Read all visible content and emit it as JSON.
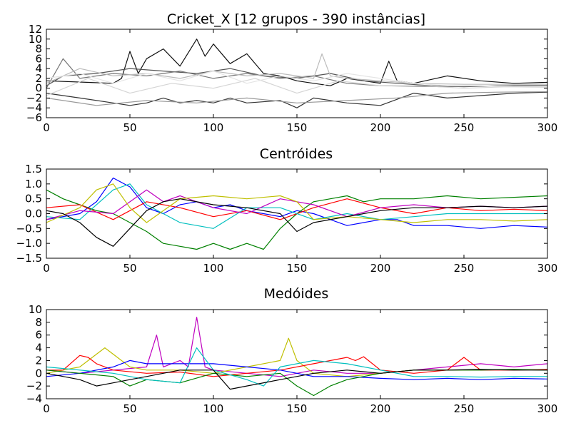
{
  "figure_title": "Cricket_X [12 grupos - 390 instâncias]",
  "chart_data": [
    {
      "type": "line",
      "title": "Cricket_X [12 grupos - 390 instâncias]",
      "xlabel": "",
      "ylabel": "",
      "xlim": [
        0,
        300
      ],
      "ylim": [
        -6,
        12
      ],
      "xticks": [
        "0",
        "50",
        "100",
        "150",
        "200",
        "250",
        "300"
      ],
      "yticks": [
        "−6",
        "−4",
        "−2",
        "0",
        "2",
        "4",
        "6",
        "8",
        "10",
        "12"
      ],
      "grid": false,
      "legend": "none",
      "description_series": "390 overlaid instances in grayscale (black to light gray)",
      "series": [
        {
          "color": "#111111",
          "x": [
            0,
            40,
            45,
            50,
            55,
            60,
            70,
            80,
            90,
            95,
            100,
            110,
            120,
            130,
            140,
            150,
            160,
            170,
            180,
            190,
            200,
            205,
            210,
            220,
            240,
            260,
            280,
            300
          ],
          "values": [
            1.5,
            1.0,
            2.0,
            7.5,
            3.0,
            6.0,
            8.0,
            4.5,
            10.0,
            6.5,
            9.0,
            5.0,
            7.0,
            3.0,
            2.5,
            1.5,
            1.0,
            0.5,
            2.0,
            1.5,
            1.0,
            5.5,
            1.5,
            1.0,
            2.5,
            1.5,
            1.0,
            1.2
          ]
        },
        {
          "color": "#333333",
          "x": [
            0,
            20,
            40,
            50,
            60,
            70,
            80,
            90,
            100,
            110,
            120,
            140,
            150,
            160,
            180,
            200,
            220,
            240,
            260,
            280,
            300
          ],
          "values": [
            -1.0,
            -2.0,
            -3.0,
            -3.5,
            -3.0,
            -2.0,
            -3.0,
            -2.5,
            -3.0,
            -2.0,
            -3.0,
            -2.5,
            -4.0,
            -2.0,
            -3.0,
            -3.5,
            -1.0,
            -2.0,
            -1.5,
            -1.0,
            -0.8
          ]
        },
        {
          "color": "#555555",
          "x": [
            0,
            10,
            30,
            50,
            70,
            90,
            110,
            130,
            150,
            170,
            190,
            210,
            230,
            250,
            270,
            300
          ],
          "values": [
            0.5,
            2.5,
            3.0,
            4.0,
            3.5,
            3.0,
            4.0,
            2.5,
            2.0,
            3.0,
            1.5,
            1.0,
            0.5,
            0.3,
            0.5,
            0.4
          ]
        },
        {
          "color": "#777777",
          "x": [
            0,
            10,
            20,
            40,
            60,
            80,
            100,
            120,
            140,
            160,
            180,
            200,
            240,
            270,
            300
          ],
          "values": [
            0.0,
            6.0,
            2.0,
            3.0,
            2.5,
            3.5,
            2.0,
            3.0,
            2.0,
            2.5,
            1.0,
            0.5,
            0.3,
            0.5,
            0.6
          ]
        },
        {
          "color": "#999999",
          "x": [
            0,
            30,
            60,
            90,
            120,
            150,
            180,
            210,
            240,
            270,
            300
          ],
          "values": [
            -2.0,
            -3.5,
            -2.5,
            -3.0,
            -2.0,
            -3.0,
            -2.5,
            -2.0,
            -1.0,
            -0.8,
            -0.7
          ]
        },
        {
          "color": "#bbbbbb",
          "x": [
            0,
            20,
            40,
            60,
            80,
            100,
            120,
            140,
            160,
            165,
            170,
            180,
            200,
            220,
            250,
            300
          ],
          "values": [
            1.0,
            4.0,
            2.5,
            3.0,
            2.0,
            3.5,
            2.5,
            3.0,
            2.0,
            7.0,
            2.5,
            2.0,
            1.5,
            1.0,
            0.8,
            0.8
          ]
        },
        {
          "color": "#d5d5d5",
          "x": [
            0,
            25,
            50,
            75,
            100,
            125,
            150,
            175,
            200,
            225,
            250,
            275,
            300
          ],
          "values": [
            -1.5,
            2.0,
            -1.0,
            1.0,
            0.0,
            2.0,
            -1.0,
            1.5,
            0.5,
            0.5,
            0.0,
            0.3,
            0.2
          ]
        },
        {
          "color": "#e5e5e5",
          "x": [
            0,
            20,
            40,
            60,
            80,
            100,
            120,
            140,
            160,
            180,
            200,
            220,
            240,
            260,
            280,
            300
          ],
          "values": [
            2.0,
            3.0,
            1.0,
            3.0,
            1.5,
            3.5,
            1.0,
            2.5,
            1.5,
            3.0,
            2.0,
            1.0,
            0.5,
            0.5,
            0.3,
            0.4
          ]
        }
      ]
    },
    {
      "type": "line",
      "title": "Centróides",
      "xlabel": "",
      "ylabel": "",
      "xlim": [
        0,
        300
      ],
      "ylim": [
        -1.5,
        1.5
      ],
      "xticks": [
        "0",
        "50",
        "100",
        "150",
        "200",
        "250",
        "300"
      ],
      "yticks": [
        "−1.5",
        "−1.0",
        "−0.5",
        "0.0",
        "0.5",
        "1.0",
        "1.5"
      ],
      "grid": false,
      "legend": "none",
      "series": [
        {
          "color": "#0000ff",
          "x": [
            0,
            20,
            30,
            40,
            50,
            60,
            70,
            80,
            90,
            100,
            110,
            120,
            130,
            140,
            150,
            160,
            170,
            180,
            200,
            210,
            220,
            240,
            260,
            280,
            300
          ],
          "values": [
            -0.2,
            0.0,
            0.4,
            1.2,
            0.9,
            0.2,
            0.0,
            0.3,
            0.4,
            0.2,
            0.3,
            0.1,
            0.0,
            -0.1,
            0.1,
            0.0,
            -0.2,
            -0.4,
            -0.2,
            -0.2,
            -0.4,
            -0.4,
            -0.5,
            -0.4,
            -0.45
          ]
        },
        {
          "color": "#008000",
          "x": [
            0,
            10,
            20,
            30,
            40,
            50,
            60,
            70,
            80,
            90,
            100,
            110,
            120,
            130,
            140,
            150,
            160,
            170,
            180,
            190,
            200,
            210,
            220,
            240,
            260,
            280,
            300
          ],
          "values": [
            0.8,
            0.5,
            0.3,
            0.1,
            0.0,
            -0.3,
            -0.6,
            -1.0,
            -1.1,
            -1.2,
            -1.0,
            -1.2,
            -1.0,
            -1.2,
            -0.5,
            0.0,
            0.4,
            0.5,
            0.6,
            0.4,
            0.5,
            0.5,
            0.5,
            0.6,
            0.5,
            0.55,
            0.6
          ]
        },
        {
          "color": "#ff0000",
          "x": [
            0,
            20,
            40,
            60,
            80,
            100,
            120,
            140,
            160,
            180,
            200,
            220,
            240,
            260,
            280,
            300
          ],
          "values": [
            0.2,
            0.3,
            -0.2,
            0.4,
            0.2,
            -0.1,
            0.1,
            -0.2,
            0.2,
            0.5,
            0.2,
            0.0,
            0.2,
            0.1,
            0.15,
            0.1
          ]
        },
        {
          "color": "#00bfbf",
          "x": [
            0,
            20,
            40,
            50,
            60,
            80,
            100,
            120,
            140,
            160,
            180,
            200,
            220,
            240,
            260,
            280,
            300
          ],
          "values": [
            -0.1,
            -0.2,
            0.8,
            1.0,
            0.3,
            -0.3,
            -0.5,
            0.2,
            0.2,
            -0.2,
            0.0,
            -0.2,
            -0.1,
            0.0,
            0.0,
            0.0,
            0.0
          ]
        },
        {
          "color": "#bf00bf",
          "x": [
            0,
            20,
            40,
            60,
            70,
            80,
            100,
            120,
            140,
            160,
            180,
            200,
            220,
            240,
            260,
            280,
            300
          ],
          "values": [
            -0.2,
            0.1,
            0.0,
            0.8,
            0.4,
            0.6,
            0.2,
            0.0,
            0.5,
            0.3,
            -0.1,
            0.2,
            0.3,
            0.2,
            0.25,
            0.2,
            0.25
          ]
        },
        {
          "color": "#bfbf00",
          "x": [
            0,
            20,
            30,
            40,
            50,
            60,
            80,
            100,
            120,
            140,
            150,
            160,
            180,
            200,
            220,
            240,
            260,
            280,
            300
          ],
          "values": [
            -0.3,
            0.2,
            0.8,
            1.0,
            0.2,
            -0.3,
            0.5,
            0.6,
            0.5,
            0.6,
            0.4,
            -0.2,
            -0.1,
            -0.2,
            -0.3,
            -0.2,
            -0.2,
            -0.25,
            -0.2
          ]
        },
        {
          "color": "#000000",
          "x": [
            0,
            10,
            20,
            30,
            40,
            50,
            60,
            70,
            80,
            100,
            120,
            140,
            150,
            160,
            180,
            200,
            220,
            240,
            260,
            280,
            300
          ],
          "values": [
            0.1,
            0.0,
            -0.3,
            -0.8,
            -1.1,
            -0.5,
            0.1,
            0.4,
            0.5,
            0.3,
            0.2,
            0.0,
            -0.6,
            -0.3,
            -0.1,
            0.1,
            0.2,
            0.2,
            0.25,
            0.2,
            0.25
          ]
        }
      ]
    },
    {
      "type": "line",
      "title": "Medóides",
      "xlabel": "",
      "ylabel": "",
      "xlim": [
        0,
        300
      ],
      "ylim": [
        -4,
        10
      ],
      "xticks": [
        "0",
        "50",
        "100",
        "150",
        "200",
        "250",
        "300"
      ],
      "yticks": [
        "−4",
        "−2",
        "0",
        "2",
        "4",
        "6",
        "8",
        "10"
      ],
      "grid": false,
      "legend": "none",
      "series": [
        {
          "color": "#bf00bf",
          "x": [
            0,
            20,
            40,
            60,
            66,
            70,
            80,
            85,
            90,
            95,
            100,
            120,
            140,
            160,
            180,
            200,
            220,
            240,
            260,
            280,
            300
          ],
          "values": [
            0.5,
            0.0,
            0.5,
            1.0,
            6.0,
            1.0,
            2.0,
            1.0,
            8.8,
            1.0,
            0.5,
            0.0,
            -0.5,
            0.5,
            0.0,
            0.0,
            0.5,
            1.0,
            1.5,
            1.0,
            1.5
          ]
        },
        {
          "color": "#bfbf00",
          "x": [
            0,
            20,
            30,
            35,
            40,
            50,
            60,
            80,
            100,
            120,
            140,
            145,
            150,
            160,
            180,
            200,
            220,
            240,
            260,
            280,
            300
          ],
          "values": [
            0.0,
            1.0,
            3.0,
            4.0,
            3.0,
            1.0,
            0.5,
            0.5,
            0.0,
            1.0,
            2.0,
            5.5,
            2.0,
            0.0,
            -0.5,
            0.0,
            0.5,
            0.5,
            0.5,
            0.6,
            0.5
          ]
        },
        {
          "color": "#ff0000",
          "x": [
            0,
            10,
            20,
            25,
            30,
            40,
            60,
            80,
            100,
            120,
            140,
            160,
            180,
            185,
            190,
            200,
            220,
            240,
            250,
            260,
            280,
            300
          ],
          "values": [
            0.5,
            0.5,
            2.8,
            2.5,
            1.5,
            0.5,
            0.0,
            0.2,
            -0.5,
            0.0,
            0.5,
            1.5,
            2.5,
            2.0,
            2.6,
            0.5,
            0.0,
            0.5,
            2.5,
            0.5,
            0.5,
            0.6
          ]
        },
        {
          "color": "#0000ff",
          "x": [
            0,
            20,
            40,
            50,
            60,
            80,
            100,
            120,
            140,
            150,
            160,
            180,
            200,
            220,
            240,
            260,
            280,
            300
          ],
          "values": [
            -0.5,
            0.0,
            1.0,
            2.0,
            1.5,
            1.5,
            1.5,
            1.0,
            0.5,
            0.0,
            -0.5,
            -0.5,
            -0.8,
            -1.0,
            -0.8,
            -1.0,
            -0.8,
            -0.9
          ]
        },
        {
          "color": "#008000",
          "x": [
            0,
            20,
            40,
            50,
            60,
            80,
            100,
            120,
            140,
            150,
            160,
            170,
            180,
            200,
            220,
            240,
            260,
            280,
            300
          ],
          "values": [
            0.5,
            0.0,
            -0.5,
            -2.0,
            -1.0,
            -1.5,
            0.0,
            -0.5,
            0.0,
            -2.0,
            -3.5,
            -2.0,
            -1.0,
            0.0,
            0.5,
            0.5,
            0.5,
            0.6,
            0.5
          ]
        },
        {
          "color": "#00bfbf",
          "x": [
            0,
            20,
            40,
            60,
            80,
            90,
            100,
            120,
            130,
            140,
            160,
            180,
            200,
            220,
            240,
            260,
            280,
            300
          ],
          "values": [
            1.0,
            0.5,
            0.0,
            -1.0,
            -1.5,
            4.0,
            0.5,
            -1.0,
            -2.0,
            1.0,
            2.0,
            1.5,
            0.5,
            -0.5,
            -0.5,
            -0.6,
            -0.5,
            -0.5
          ]
        },
        {
          "color": "#000000",
          "x": [
            0,
            20,
            30,
            40,
            50,
            60,
            80,
            100,
            110,
            120,
            140,
            160,
            180,
            200,
            220,
            240,
            260,
            280,
            300
          ],
          "values": [
            0.0,
            -1.0,
            -2.0,
            -1.5,
            -1.0,
            -0.5,
            0.5,
            0.5,
            -2.5,
            -2.0,
            -1.0,
            0.0,
            0.5,
            0.0,
            0.5,
            0.5,
            0.6,
            0.5,
            0.5
          ]
        }
      ]
    }
  ]
}
